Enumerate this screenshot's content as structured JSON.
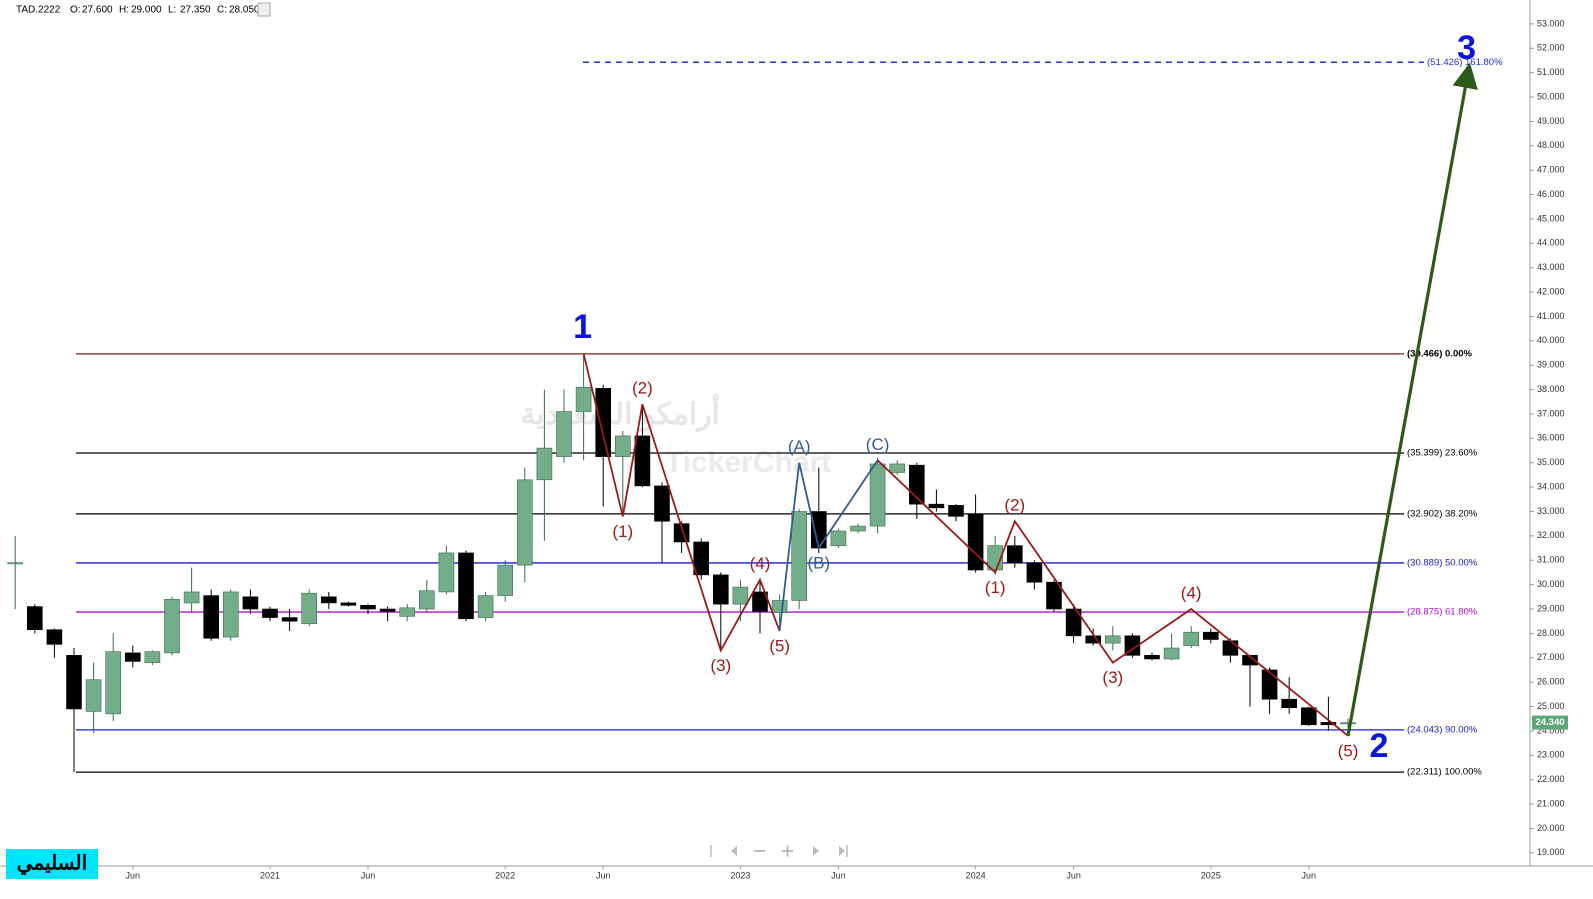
{
  "chart_data": {
    "type": "candlestick",
    "header": {
      "symbol": "TAD.2222",
      "fields": [
        {
          "label": "O:",
          "value": "27.600"
        },
        {
          "label": "H:",
          "value": "29.000"
        },
        {
          "label": "L:",
          "value": "27.350"
        },
        {
          "label": "C:",
          "value": "28.050"
        }
      ]
    },
    "watermark": {
      "name": "أرامكو السعودية",
      "brand": "TickerChart"
    },
    "author": "السليمي",
    "categories": [
      null,
      null,
      null,
      null,
      null,
      null,
      "Jun",
      null,
      null,
      null,
      null,
      null,
      null,
      "2021",
      null,
      null,
      null,
      null,
      "Jun",
      null,
      null,
      null,
      null,
      null,
      null,
      "2022",
      null,
      null,
      null,
      null,
      "Jun",
      null,
      null,
      null,
      null,
      null,
      null,
      "2023",
      null,
      null,
      null,
      null,
      "Jun",
      null,
      null,
      null,
      null,
      null,
      null,
      "2024",
      null,
      null,
      null,
      null,
      "Jun",
      null,
      null,
      null,
      null,
      null,
      null,
      "2025",
      null,
      null,
      null,
      null,
      "Jun",
      null,
      null
    ],
    "open": [
      30.9,
      29.1,
      28.15,
      27.1,
      24.8,
      24.7,
      27.2,
      26.8,
      27.2,
      29.25,
      29.55,
      27.85,
      29.5,
      29.0,
      28.65,
      28.4,
      29.5,
      29.25,
      29.15,
      29.0,
      28.7,
      29.0,
      29.7,
      31.3,
      28.65,
      29.55,
      30.8,
      34.3,
      35.25,
      37.1,
      38.05,
      35.25,
      36.1,
      34.05,
      32.5,
      31.75,
      30.4,
      29.2,
      29.7,
      28.85,
      29.35,
      33.0,
      31.6,
      32.2,
      32.4,
      34.6,
      34.9,
      33.3,
      33.25,
      32.9,
      30.6,
      31.6,
      30.9,
      30.1,
      29.0,
      27.9,
      27.6,
      27.9,
      27.1,
      26.95,
      27.5,
      28.05,
      27.7,
      27.1,
      26.5,
      25.3,
      24.95,
      24.35,
      24.3
    ],
    "high": [
      32.0,
      29.2,
      28.2,
      27.4,
      26.8,
      28.0,
      27.5,
      27.3,
      29.5,
      30.7,
      29.8,
      29.8,
      29.8,
      29.1,
      29.0,
      29.8,
      29.7,
      29.3,
      29.2,
      29.1,
      29.2,
      30.2,
      31.6,
      31.4,
      29.7,
      31.0,
      34.8,
      38.0,
      38.0,
      39.466,
      38.2,
      36.3,
      37.4,
      34.2,
      32.6,
      31.9,
      30.5,
      30.2,
      30.2,
      29.6,
      33.1,
      34.8,
      32.3,
      32.5,
      35.2,
      35.1,
      35.0,
      33.9,
      33.3,
      33.7,
      32.0,
      32.0,
      31.0,
      30.2,
      29.2,
      28.2,
      28.3,
      28.0,
      27.2,
      28.0,
      28.3,
      28.2,
      27.8,
      27.1,
      26.6,
      26.2,
      25.0,
      25.4,
      24.5
    ],
    "low": [
      29.0,
      28.0,
      27.0,
      22.311,
      23.9,
      24.4,
      26.6,
      26.7,
      27.1,
      28.9,
      27.7,
      27.7,
      28.8,
      28.5,
      28.1,
      28.3,
      29.0,
      29.1,
      28.8,
      28.5,
      28.5,
      28.9,
      29.6,
      28.5,
      28.5,
      29.3,
      30.1,
      31.8,
      35.0,
      35.1,
      33.2,
      32.8,
      34.0,
      30.9,
      31.3,
      30.2,
      27.3,
      28.5,
      28.0,
      28.1,
      29.0,
      31.3,
      31.5,
      32.1,
      32.1,
      34.5,
      32.7,
      33.0,
      32.6,
      30.5,
      30.4,
      30.7,
      29.8,
      28.9,
      27.6,
      27.5,
      27.3,
      27.0,
      26.9,
      26.9,
      27.4,
      27.6,
      26.8,
      25.0,
      24.7,
      24.7,
      24.2,
      24.0,
      24.1
    ],
    "close": [
      30.9,
      28.15,
      27.55,
      24.9,
      26.1,
      27.25,
      26.85,
      27.25,
      29.4,
      29.7,
      27.8,
      29.7,
      29.0,
      28.65,
      28.5,
      29.65,
      29.25,
      29.15,
      29.0,
      28.9,
      29.05,
      29.75,
      31.3,
      28.6,
      29.55,
      30.8,
      34.3,
      35.6,
      37.1,
      38.1,
      35.25,
      36.1,
      34.05,
      32.6,
      31.75,
      30.4,
      29.2,
      29.9,
      28.9,
      29.35,
      33.0,
      31.5,
      32.2,
      32.4,
      34.95,
      34.95,
      33.3,
      33.15,
      32.8,
      30.6,
      31.6,
      30.9,
      30.1,
      29.0,
      27.9,
      27.6,
      27.9,
      27.1,
      26.95,
      27.4,
      28.05,
      27.75,
      27.1,
      26.7,
      25.3,
      24.95,
      24.25,
      24.25,
      24.34
    ],
    "up_color": "#74ad8a",
    "down_color": "#000000",
    "ylim": [
      18.5,
      53.98
    ],
    "yticks": [
      {
        "value": 19,
        "label": "19.000"
      },
      {
        "value": 20,
        "label": "20.000"
      },
      {
        "value": 21,
        "label": "21.000"
      },
      {
        "value": 22,
        "label": "22.000"
      },
      {
        "value": 23,
        "label": "23.000"
      },
      {
        "value": 24,
        "label": "24.000"
      },
      {
        "value": 25,
        "label": "25.000"
      },
      {
        "value": 26,
        "label": "26.000"
      },
      {
        "value": 27,
        "label": "27.000"
      },
      {
        "value": 28,
        "label": "28.000"
      },
      {
        "value": 29,
        "label": "29.000"
      },
      {
        "value": 30,
        "label": "30.000"
      },
      {
        "value": 31,
        "label": "31.000"
      },
      {
        "value": 32,
        "label": "32.000"
      },
      {
        "value": 33,
        "label": "33.000"
      },
      {
        "value": 34,
        "label": "34.000"
      },
      {
        "value": 35,
        "label": "35.000"
      },
      {
        "value": 36,
        "label": "36.000"
      },
      {
        "value": 37,
        "label": "37.000"
      },
      {
        "value": 38,
        "label": "38.000"
      },
      {
        "value": 39,
        "label": "39.000"
      },
      {
        "value": 40,
        "label": "40.000"
      },
      {
        "value": 41,
        "label": "41.000"
      },
      {
        "value": 42,
        "label": "42.000"
      },
      {
        "value": 43,
        "label": "43.000"
      },
      {
        "value": 44,
        "label": "44.000"
      },
      {
        "value": 45,
        "label": "45.000"
      },
      {
        "value": 46,
        "label": "46.000"
      },
      {
        "value": 47,
        "label": "47.000"
      },
      {
        "value": 48,
        "label": "48.000"
      },
      {
        "value": 49,
        "label": "49.000"
      },
      {
        "value": 50,
        "label": "50.000"
      },
      {
        "value": 51,
        "label": "51.000"
      },
      {
        "value": 52,
        "label": "52.000"
      },
      {
        "value": 53,
        "label": "53.000"
      }
    ],
    "last_price": {
      "value": 24.34,
      "label": "24.340",
      "color": "#5fa57a"
    },
    "fib_levels": [
      {
        "value": 51.426,
        "label": "(51.426) 161.80%",
        "color": "#2233cc",
        "dashed": true
      },
      {
        "value": 39.466,
        "label": "(39.466) 0.00%",
        "color": "#7a1f1f",
        "text_color": "#000000"
      },
      {
        "value": 35.399,
        "label": "(35.399) 23.60%",
        "color": "#000000"
      },
      {
        "value": 32.902,
        "label": "(32.902) 38.20%",
        "color": "#000000"
      },
      {
        "value": 30.889,
        "label": "(30.889) 50.00%",
        "color": "#1a1ad6"
      },
      {
        "value": 28.875,
        "label": "(28.875) 61.80%",
        "color": "#b010d0"
      },
      {
        "value": 24.043,
        "label": "(24.043) 90.00%",
        "color": "#1a1ad6"
      },
      {
        "value": 22.311,
        "label": "(22.311) 100.00%",
        "color": "#000000"
      }
    ],
    "waves": [
      {
        "color": "#9b1a1a",
        "points": [
          {
            "x": 29,
            "y": 39.466
          },
          {
            "x": 31,
            "y": 32.8,
            "label": "(1)"
          },
          {
            "x": 32,
            "y": 37.4,
            "label": "(2)"
          },
          {
            "x": 36,
            "y": 27.3,
            "label": "(3)"
          },
          {
            "x": 38,
            "y": 30.2,
            "label": "(4)"
          },
          {
            "x": 39,
            "y": 28.1,
            "label": "(5)"
          }
        ]
      },
      {
        "color": "#2f5f8f",
        "points": [
          {
            "x": 39,
            "y": 28.1
          },
          {
            "x": 40,
            "y": 35.0,
            "label": "(A)"
          },
          {
            "x": 41,
            "y": 31.5,
            "label": "(B)"
          },
          {
            "x": 44,
            "y": 35.1,
            "label": "(C)"
          }
        ]
      },
      {
        "color": "#9b1a1a",
        "points": [
          {
            "x": 44,
            "y": 35.1
          },
          {
            "x": 50,
            "y": 30.5,
            "label": "(1)"
          },
          {
            "x": 51,
            "y": 32.6,
            "label": "(2)"
          },
          {
            "x": 56,
            "y": 26.8,
            "label": "(3)"
          },
          {
            "x": 60,
            "y": 29.0,
            "label": "(4)"
          },
          {
            "x": 68,
            "y": 23.8,
            "label": "(5)"
          }
        ]
      },
      {
        "color": "#2d5a18",
        "arrow": true,
        "points": [
          {
            "x": 68,
            "y": 23.8
          },
          {
            "x": 74.1,
            "y": 50.9
          }
        ]
      }
    ],
    "degree_labels": [
      {
        "text": "1",
        "x": 29,
        "y": 39.466
      },
      {
        "text": "2",
        "x": 68,
        "y": 23.8
      },
      {
        "text": "3",
        "x": 74.1,
        "y": 50.9
      }
    ],
    "degree_color": "#0a14e6"
  }
}
